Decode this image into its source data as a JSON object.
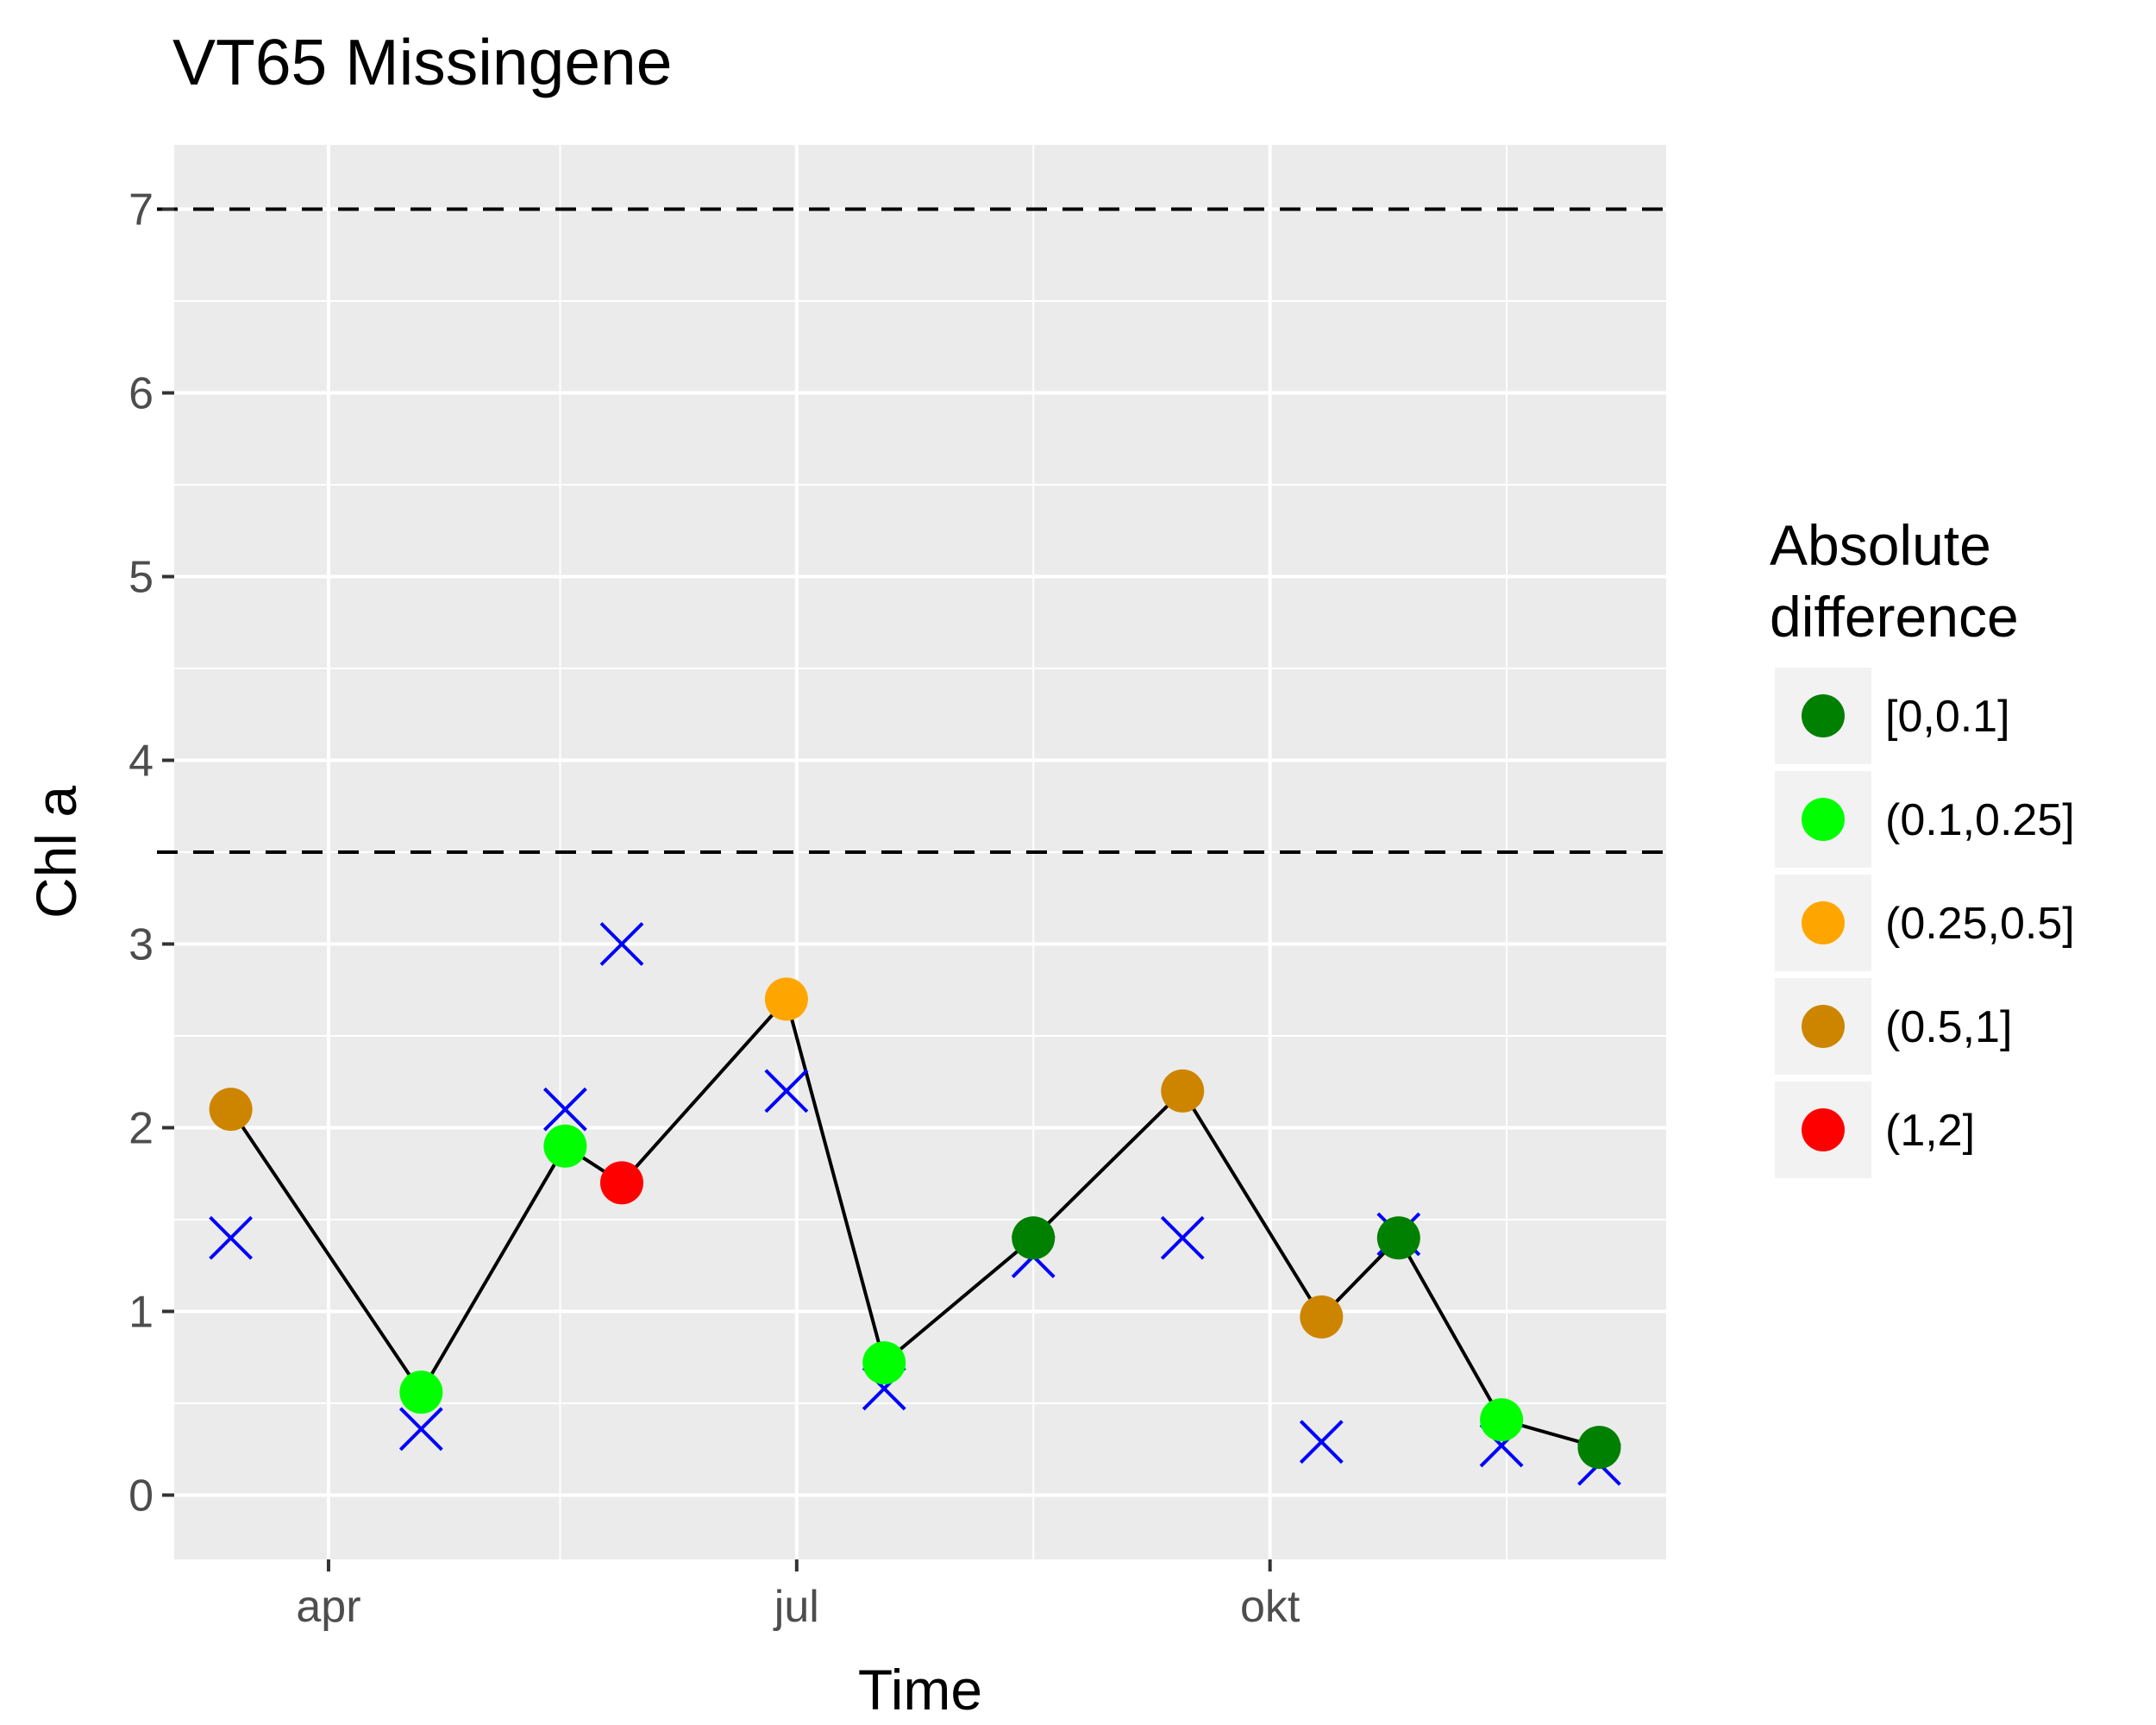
{
  "chart_data": {
    "type": "scatter",
    "title": "VT65 Missingene",
    "xlabel": "Time",
    "ylabel": "Chl a",
    "x_ticks": [
      {
        "label": "apr",
        "date": "2019-04-01"
      },
      {
        "label": "jul",
        "date": "2019-07-01"
      },
      {
        "label": "okt",
        "date": "2019-10-01"
      }
    ],
    "xlim": [
      "2019-03-02",
      "2019-12-17"
    ],
    "y_ticks": [
      0,
      1,
      2,
      3,
      4,
      5,
      6,
      7
    ],
    "ylim": [
      -0.35,
      7.35
    ],
    "reference_lines": [
      3.5,
      7
    ],
    "grid": true,
    "legend": {
      "title_lines": [
        "Absolute",
        "difference"
      ],
      "placement": "right",
      "entries": [
        {
          "label": "[0,0.1]",
          "color": "#008000"
        },
        {
          "label": "(0.1,0.25]",
          "color": "#00ff00"
        },
        {
          "label": "(0.25,0.5]",
          "color": "#ffa500"
        },
        {
          "label": "(0.5,1]",
          "color": "#cd8500"
        },
        {
          "label": "(1,2]",
          "color": "#ff0000"
        }
      ]
    },
    "series": [
      {
        "marker": "circle",
        "line": true,
        "points": [
          {
            "date": "2019-03-13",
            "y": 2.1,
            "bin": 3
          },
          {
            "date": "2019-04-19",
            "y": 0.56,
            "bin": 1
          },
          {
            "date": "2019-05-17",
            "y": 1.9,
            "bin": 1
          },
          {
            "date": "2019-05-28",
            "y": 1.7,
            "bin": 4
          },
          {
            "date": "2019-06-29",
            "y": 2.7,
            "bin": 2
          },
          {
            "date": "2019-07-18",
            "y": 0.72,
            "bin": 1
          },
          {
            "date": "2019-08-16",
            "y": 1.4,
            "bin": 0
          },
          {
            "date": "2019-09-14",
            "y": 2.2,
            "bin": 3
          },
          {
            "date": "2019-10-11",
            "y": 0.97,
            "bin": 3
          },
          {
            "date": "2019-10-26",
            "y": 1.4,
            "bin": 0
          },
          {
            "date": "2019-11-15",
            "y": 0.41,
            "bin": 1
          },
          {
            "date": "2019-12-04",
            "y": 0.26,
            "bin": 0
          }
        ]
      },
      {
        "marker": "x",
        "color": "#0000ff",
        "line": false,
        "points": [
          {
            "date": "2019-03-13",
            "y": 1.4
          },
          {
            "date": "2019-04-19",
            "y": 0.36
          },
          {
            "date": "2019-05-17",
            "y": 2.1
          },
          {
            "date": "2019-05-28",
            "y": 3.0
          },
          {
            "date": "2019-06-29",
            "y": 2.2
          },
          {
            "date": "2019-07-18",
            "y": 0.58
          },
          {
            "date": "2019-08-16",
            "y": 1.3
          },
          {
            "date": "2019-09-14",
            "y": 1.4
          },
          {
            "date": "2019-10-11",
            "y": 0.29
          },
          {
            "date": "2019-10-26",
            "y": 1.42
          },
          {
            "date": "2019-11-15",
            "y": 0.27
          },
          {
            "date": "2019-12-04",
            "y": 0.17
          }
        ]
      }
    ]
  }
}
